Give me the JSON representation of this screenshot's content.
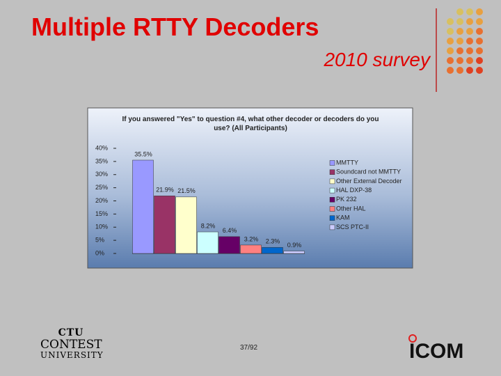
{
  "slide": {
    "title": "Multiple RTTY Decoders",
    "subtitle": "2010 survey",
    "page": "37/92",
    "logo_left": [
      "CTU",
      "CONTEST",
      "UNIVERSITY"
    ],
    "logo_right": "ICOM"
  },
  "chart_data": {
    "type": "bar",
    "title": "If you answered \"Yes\" to question #4, what other decoder or decoders do you use? (All Participants)",
    "categories": [
      "MMTTY",
      "Soundcard not MMTTY",
      "Other External Decoder",
      "HAL DXP-38",
      "PK 232",
      "Other HAL",
      "KAM",
      "SCS PTC-II"
    ],
    "values": [
      35.5,
      21.9,
      21.5,
      8.2,
      6.4,
      3.2,
      2.3,
      0.9
    ],
    "value_labels": [
      "35.5%",
      "21.9%",
      "21.5%",
      "8.2%",
      "6.4%",
      "3.2%",
      "2.3%",
      "0.9%"
    ],
    "colors": [
      "#9999ff",
      "#993366",
      "#ffffcc",
      "#ccffff",
      "#660066",
      "#ff8080",
      "#0066cc",
      "#ccccff"
    ],
    "ylim": [
      0,
      40
    ],
    "yticks": [
      {
        "value": 0,
        "label": "0%"
      },
      {
        "value": 5,
        "label": "5%"
      },
      {
        "value": 10,
        "label": "10%"
      },
      {
        "value": 15,
        "label": "15%"
      },
      {
        "value": 20,
        "label": "20%"
      },
      {
        "value": 25,
        "label": "25%"
      },
      {
        "value": 30,
        "label": "30%"
      },
      {
        "value": 35,
        "label": "35%"
      },
      {
        "value": 40,
        "label": "40%"
      }
    ],
    "legend": "right"
  }
}
